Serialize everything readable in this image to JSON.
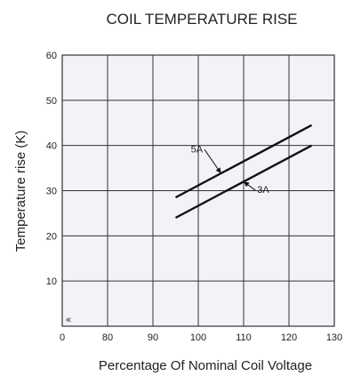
{
  "chart_data": {
    "type": "line",
    "title": "COIL TEMPERATURE RISE",
    "xlabel": "Percentage Of Nominal Coil Voltage",
    "ylabel": "Temperature rise (K)",
    "x_ticks": [
      "0",
      "80",
      "90",
      "100",
      "110",
      "120",
      "130"
    ],
    "x_tick_values": [
      70,
      80,
      90,
      100,
      110,
      120,
      130
    ],
    "y_ticks": [
      "10",
      "20",
      "30",
      "40",
      "50",
      "60"
    ],
    "y_tick_values": [
      10,
      20,
      30,
      40,
      50,
      60
    ],
    "xlim": [
      70,
      130
    ],
    "ylim": [
      0,
      60
    ],
    "axis_break_mark": "«",
    "grid": true,
    "background_color": "#f2f3f8",
    "grid_color": "#333333",
    "line_color": "#111111",
    "series": [
      {
        "name": "5A",
        "x": [
          95,
          125
        ],
        "y": [
          28.5,
          44.5
        ],
        "label_x": 101,
        "label_y": 38.5
      },
      {
        "name": "3A",
        "x": [
          95,
          125
        ],
        "y": [
          24.0,
          40.0
        ],
        "label_x": 113,
        "label_y": 29.5
      }
    ]
  }
}
